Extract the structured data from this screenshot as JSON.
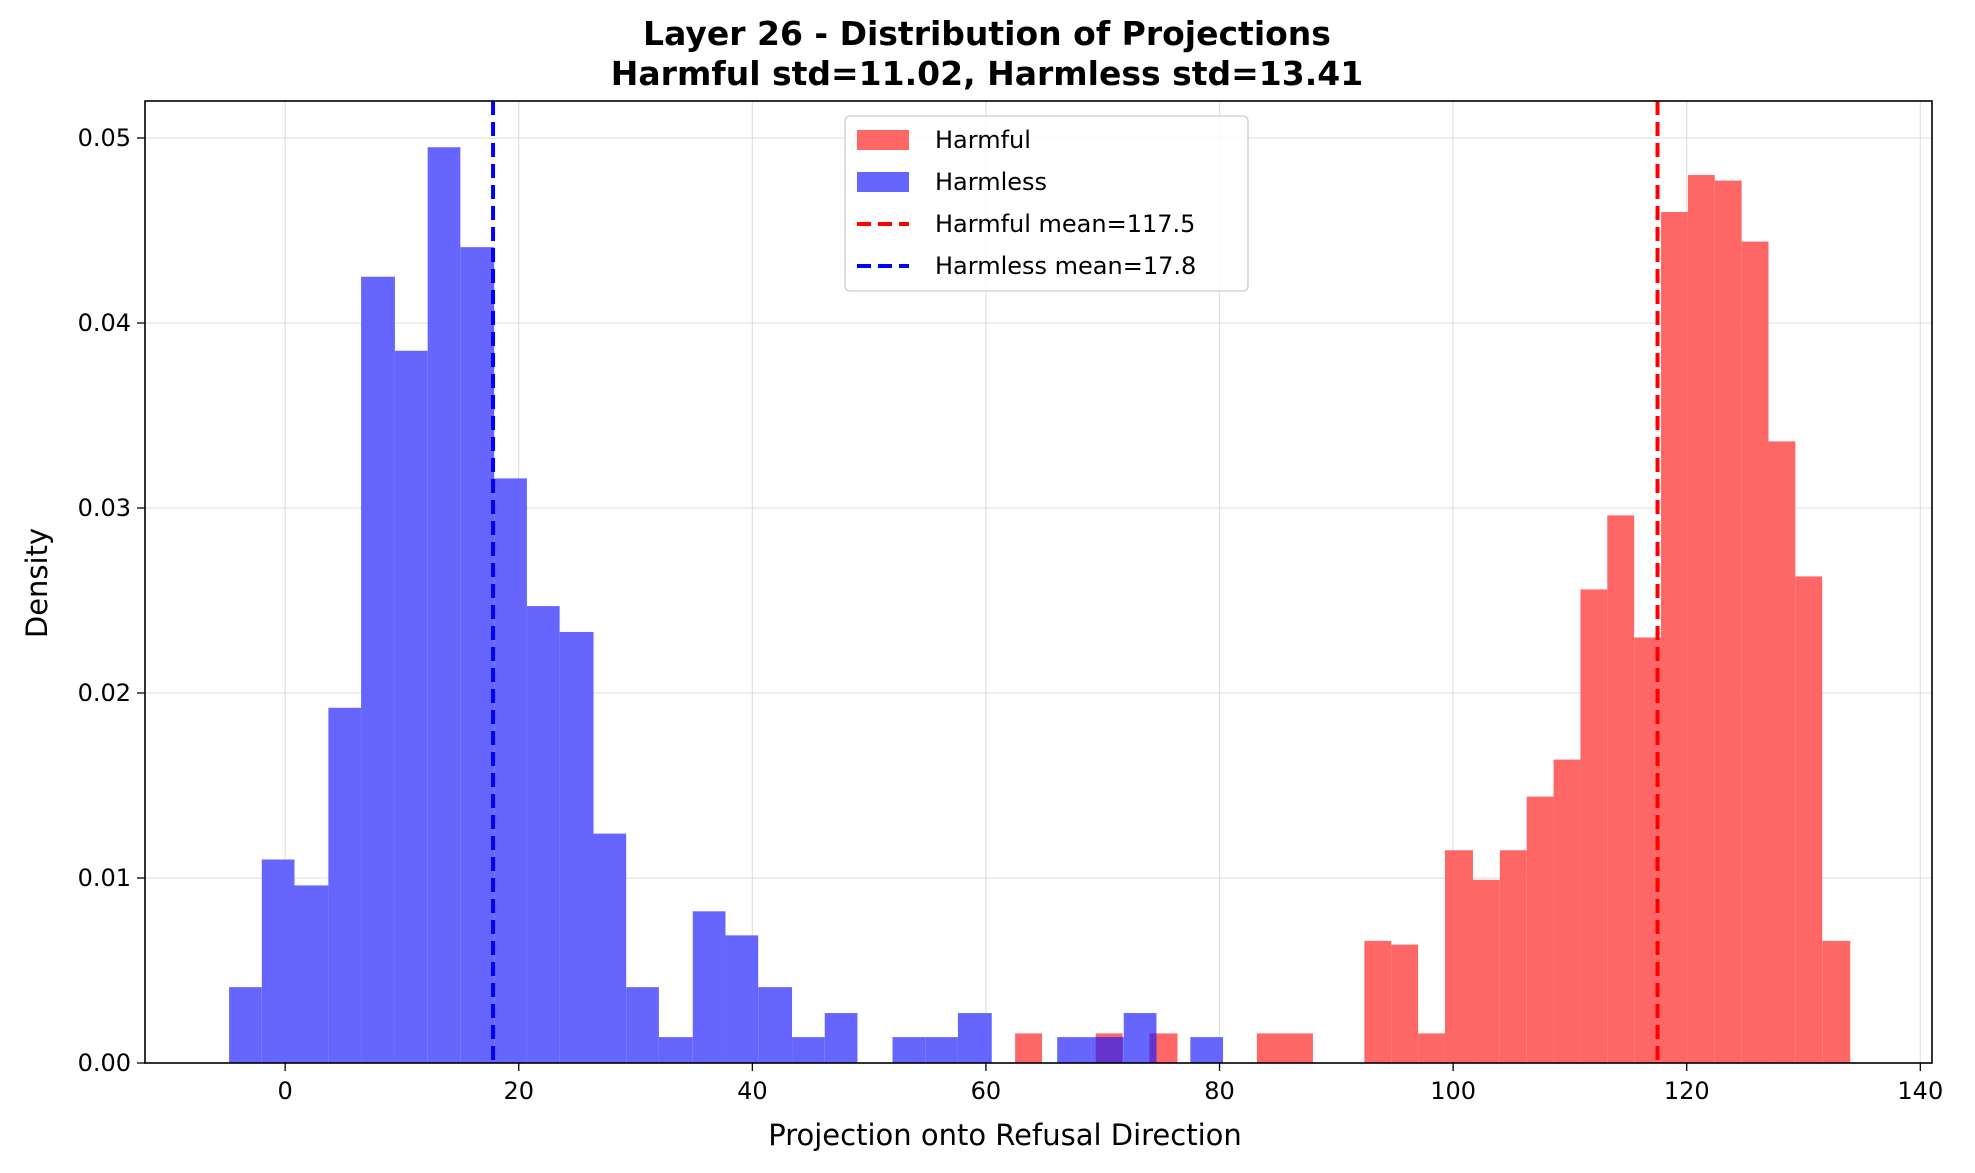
{
  "chart_data": {
    "type": "bar",
    "title": "Layer 26 - Distribution of Projections",
    "subtitle": "Harmful std=11.02, Harmless std=13.41",
    "xlabel": "Projection onto Refusal Direction",
    "ylabel": "Density",
    "xlim": [
      -12,
      141
    ],
    "ylim": [
      0,
      0.052
    ],
    "xticks": [
      0,
      20,
      40,
      60,
      80,
      100,
      120,
      140
    ],
    "yticks": [
      0.0,
      0.01,
      0.02,
      0.03,
      0.04,
      0.05
    ],
    "grid": true,
    "legend_position": "upper-center",
    "series": [
      {
        "name": "Harmful",
        "color": "#ff6666",
        "bins": [
          [
            62.5,
            64.8,
            0.0016
          ],
          [
            69.4,
            71.7,
            0.0016
          ],
          [
            74.0,
            76.4,
            0.0016
          ],
          [
            83.2,
            88.0,
            0.0016
          ],
          [
            92.4,
            94.7,
            0.0066
          ],
          [
            94.7,
            97.0,
            0.0064
          ],
          [
            97.0,
            99.3,
            0.0016
          ],
          [
            99.3,
            101.7,
            0.0115
          ],
          [
            101.7,
            104.0,
            0.0099
          ],
          [
            104.0,
            106.3,
            0.0115
          ],
          [
            106.3,
            108.6,
            0.0144
          ],
          [
            108.6,
            110.9,
            0.0164
          ],
          [
            110.9,
            113.2,
            0.0256
          ],
          [
            113.2,
            115.5,
            0.0296
          ],
          [
            115.5,
            117.8,
            0.023
          ],
          [
            117.8,
            120.1,
            0.046
          ],
          [
            120.1,
            122.4,
            0.048
          ],
          [
            122.4,
            124.7,
            0.0477
          ],
          [
            124.7,
            127.0,
            0.0444
          ],
          [
            127.0,
            129.3,
            0.0336
          ],
          [
            129.3,
            131.6,
            0.0263
          ],
          [
            131.6,
            134.0,
            0.0066
          ]
        ]
      },
      {
        "name": "Harmless",
        "color": "#6666ff",
        "bins": [
          [
            -4.8,
            -2.0,
            0.0041
          ],
          [
            -2.0,
            0.8,
            0.011
          ],
          [
            0.8,
            3.7,
            0.0096
          ],
          [
            3.7,
            6.5,
            0.0192
          ],
          [
            6.5,
            9.4,
            0.0425
          ],
          [
            9.4,
            12.2,
            0.0385
          ],
          [
            12.2,
            15.0,
            0.0495
          ],
          [
            15.0,
            17.9,
            0.0441
          ],
          [
            17.9,
            20.7,
            0.0316
          ],
          [
            20.7,
            23.5,
            0.0247
          ],
          [
            23.5,
            26.4,
            0.0233
          ],
          [
            26.4,
            29.2,
            0.0124
          ],
          [
            29.2,
            32.0,
            0.0041
          ],
          [
            32.0,
            34.9,
            0.0014
          ],
          [
            34.9,
            37.7,
            0.0082
          ],
          [
            37.7,
            40.5,
            0.0069
          ],
          [
            40.5,
            43.4,
            0.0041
          ],
          [
            43.4,
            46.2,
            0.0014
          ],
          [
            46.2,
            49.0,
            0.0027
          ],
          [
            52.0,
            54.8,
            0.0014
          ],
          [
            54.8,
            57.6,
            0.0014
          ],
          [
            57.6,
            60.5,
            0.0027
          ],
          [
            66.1,
            69.0,
            0.0014
          ],
          [
            69.0,
            71.8,
            0.0014
          ],
          [
            71.8,
            74.6,
            0.0027
          ],
          [
            77.5,
            80.3,
            0.0014
          ]
        ]
      }
    ],
    "vlines": [
      {
        "name": "Harmful mean=117.5",
        "x": 117.5,
        "color": "#ff0000",
        "style": "dashed"
      },
      {
        "name": "Harmless mean=17.8",
        "x": 17.8,
        "color": "#0000ff",
        "style": "dashed"
      }
    ]
  }
}
